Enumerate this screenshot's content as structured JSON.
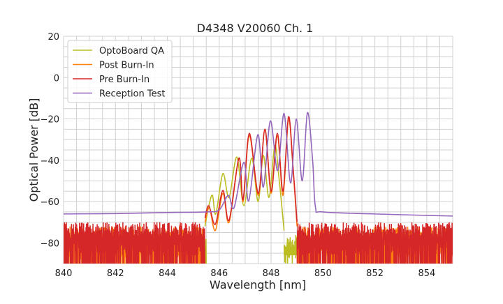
{
  "chart_data": {
    "type": "line",
    "title": "D4348 V20060 Ch. 1",
    "xlabel": "Wavelength [nm]",
    "ylabel": "Optical Power [dB]",
    "xlim": [
      840,
      855
    ],
    "ylim": [
      -90,
      20
    ],
    "xticks": [
      840,
      842,
      844,
      846,
      848,
      850,
      852,
      854
    ],
    "yticks": [
      20,
      0,
      -20,
      -40,
      -60,
      -80
    ],
    "xtick_labels": [
      "840",
      "842",
      "844",
      "846",
      "848",
      "850",
      "852",
      "854"
    ],
    "ytick_labels": [
      "20",
      "0",
      "−20",
      "−40",
      "−60",
      "−80"
    ],
    "minor_grid": {
      "x_step": 0.5,
      "y_step": 5
    },
    "grid": true,
    "legend_position": "top-left",
    "series": [
      {
        "name": "OptoBoard QA",
        "color": "#bcbd22",
        "points": [
          [
            845.45,
            -72
          ],
          [
            845.6,
            -62
          ],
          [
            845.74,
            -57
          ],
          [
            845.87,
            -66
          ],
          [
            846.14,
            -46.5
          ],
          [
            846.38,
            -58
          ],
          [
            846.68,
            -38.5
          ],
          [
            846.95,
            -62
          ],
          [
            847.25,
            -39
          ],
          [
            847.5,
            -60
          ],
          [
            847.7,
            -37.7
          ],
          [
            847.92,
            -58
          ],
          [
            848.14,
            -33
          ],
          [
            848.3,
            -48
          ],
          [
            848.5,
            -74
          ]
        ],
        "noise": [
          [
            848.5,
            849.05,
            -86,
            -76
          ],
          [
            845.4,
            845.5,
            -88,
            -78
          ]
        ]
      },
      {
        "name": "Post Burn-In",
        "color": "#ff7f0e",
        "points": [
          [
            845.45,
            -70
          ],
          [
            845.62,
            -63
          ],
          [
            845.85,
            -74
          ],
          [
            846.14,
            -56
          ],
          [
            846.38,
            -70
          ],
          [
            846.76,
            -39
          ],
          [
            846.92,
            -60
          ],
          [
            847.16,
            -28
          ],
          [
            847.51,
            -57
          ],
          [
            847.76,
            -25
          ],
          [
            848.0,
            -56
          ],
          [
            848.24,
            -28
          ],
          [
            848.46,
            -57
          ],
          [
            848.67,
            -20
          ],
          [
            848.85,
            -45
          ],
          [
            849.0,
            -72
          ]
        ],
        "noise": [
          [
            840,
            845.45,
            -90,
            -72
          ],
          [
            849.0,
            855,
            -90,
            -72
          ]
        ]
      },
      {
        "name": "Pre Burn-In",
        "color": "#d62728",
        "points": [
          [
            845.45,
            -68
          ],
          [
            845.6,
            -62
          ],
          [
            845.85,
            -71
          ],
          [
            846.14,
            -54.6
          ],
          [
            846.38,
            -69
          ],
          [
            846.76,
            -39
          ],
          [
            846.92,
            -59
          ],
          [
            847.16,
            -27
          ],
          [
            847.51,
            -56
          ],
          [
            847.76,
            -25
          ],
          [
            848.0,
            -55
          ],
          [
            848.24,
            -27
          ],
          [
            848.46,
            -55
          ],
          [
            848.67,
            -19
          ],
          [
            848.85,
            -44
          ],
          [
            849.0,
            -70
          ]
        ],
        "noise": [
          [
            840,
            845.45,
            -90,
            -70
          ],
          [
            849.0,
            855,
            -90,
            -70
          ]
        ]
      },
      {
        "name": "Reception Test",
        "color": "#9467bd",
        "points": [
          [
            840,
            -66
          ],
          [
            842,
            -65.8
          ],
          [
            844,
            -65.3
          ],
          [
            845.5,
            -65
          ],
          [
            846.0,
            -64
          ],
          [
            846.35,
            -57
          ],
          [
            846.57,
            -63
          ],
          [
            846.95,
            -41
          ],
          [
            847.14,
            -59.6
          ],
          [
            847.49,
            -27.6
          ],
          [
            847.7,
            -53
          ],
          [
            847.97,
            -21
          ],
          [
            848.25,
            -45
          ],
          [
            848.5,
            -17.4
          ],
          [
            848.75,
            -51
          ],
          [
            848.97,
            -20
          ],
          [
            849.2,
            -50
          ],
          [
            849.4,
            -17
          ],
          [
            849.6,
            -40
          ],
          [
            849.71,
            -62.7
          ],
          [
            850,
            -65
          ],
          [
            852,
            -66
          ],
          [
            855,
            -67
          ]
        ],
        "noise": []
      }
    ]
  }
}
